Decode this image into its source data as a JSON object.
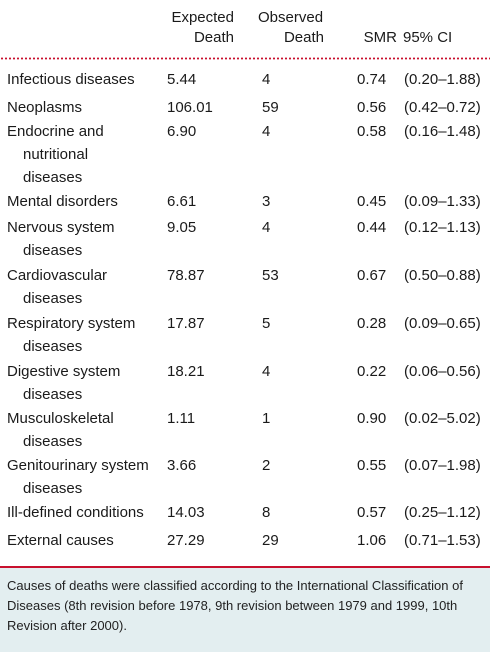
{
  "headers": {
    "expected": [
      "Expected",
      "Death"
    ],
    "observed": [
      "Observed",
      "Death"
    ],
    "smr": "SMR",
    "ci": "95% CI"
  },
  "rows": [
    {
      "cause": [
        "Infectious diseases"
      ],
      "expected": "5.44",
      "observed": "4",
      "smr": "0.74",
      "ci": "(0.20–1.88)"
    },
    {
      "cause": [
        "Neoplasms"
      ],
      "expected": "106.01",
      "observed": "59",
      "smr": "0.56",
      "ci": "(0.42–0.72)"
    },
    {
      "cause": [
        "Endocrine and",
        "nutritional",
        "diseases"
      ],
      "expected": "6.90",
      "observed": "4",
      "smr": "0.58",
      "ci": "(0.16–1.48)"
    },
    {
      "cause": [
        "Mental disorders"
      ],
      "expected": "6.61",
      "observed": "3",
      "smr": "0.45",
      "ci": "(0.09–1.33)"
    },
    {
      "cause": [
        "Nervous system",
        "diseases"
      ],
      "expected": "9.05",
      "observed": "4",
      "smr": "0.44",
      "ci": "(0.12–1.13)"
    },
    {
      "cause": [
        "Cardiovascular",
        "diseases"
      ],
      "expected": "78.87",
      "observed": "53",
      "smr": "0.67",
      "ci": "(0.50–0.88)"
    },
    {
      "cause": [
        "Respiratory system",
        "diseases"
      ],
      "expected": "17.87",
      "observed": "5",
      "smr": "0.28",
      "ci": "(0.09–0.65)"
    },
    {
      "cause": [
        "Digestive system",
        "diseases"
      ],
      "expected": "18.21",
      "observed": "4",
      "smr": "0.22",
      "ci": "(0.06–0.56)"
    },
    {
      "cause": [
        "Musculoskeletal",
        "diseases"
      ],
      "expected": "1.11",
      "observed": "1",
      "smr": "0.90",
      "ci": "(0.02–5.02)"
    },
    {
      "cause": [
        "Genitourinary system",
        "diseases"
      ],
      "expected": "3.66",
      "observed": "2",
      "smr": "0.55",
      "ci": "(0.07–1.98)"
    },
    {
      "cause": [
        "Ill-defined conditions"
      ],
      "expected": "14.03",
      "observed": "8",
      "smr": "0.57",
      "ci": "(0.25–1.12)"
    },
    {
      "cause": [
        "External causes"
      ],
      "expected": "27.29",
      "observed": "29",
      "smr": "1.06",
      "ci": "(0.71–1.53)"
    }
  ],
  "footnote": "Causes of deaths were classified according to the International Classification of Diseases (8th revision before 1978, 9th revision between 1979 and 1999, 10th Revision after 2000).",
  "colors": {
    "accent": "#c8102e",
    "footnote_bg": "#e3eef0"
  }
}
